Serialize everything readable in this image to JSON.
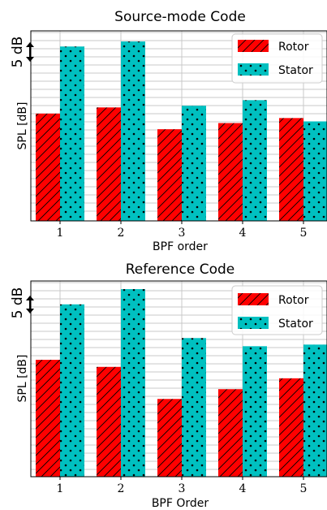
{
  "colors": {
    "rotor": "#ff0000",
    "stator": "#00c0c0",
    "grid": "#c8c8c8",
    "axis": "#000000"
  },
  "scale_label": "5 dB",
  "chart_data": [
    {
      "type": "bar",
      "title": "Source-mode Code",
      "xlabel": "BPF order",
      "ylabel": "SPL [dB]",
      "categories": [
        "1",
        "2",
        "3",
        "4",
        "5"
      ],
      "ylim": [
        0,
        34
      ],
      "grid": true,
      "legend_position": "top-right",
      "series": [
        {
          "name": "Rotor",
          "values": [
            19.2,
            20.3,
            16.4,
            17.5,
            18.4
          ]
        },
        {
          "name": "Stator",
          "values": [
            31.2,
            32.1,
            20.6,
            21.6,
            17.8
          ]
        }
      ]
    },
    {
      "type": "bar",
      "title": "Reference Code",
      "xlabel": "BPF Order",
      "ylabel": "SPL [dB]",
      "categories": [
        "1",
        "2",
        "3",
        "4",
        "5"
      ],
      "ylim": [
        0,
        36
      ],
      "grid": true,
      "legend_position": "top-right",
      "series": [
        {
          "name": "Rotor",
          "values": [
            21.5,
            20.2,
            14.3,
            16.1,
            18.1
          ]
        },
        {
          "name": "Stator",
          "values": [
            31.7,
            34.5,
            25.5,
            24.0,
            24.3
          ]
        }
      ]
    }
  ]
}
